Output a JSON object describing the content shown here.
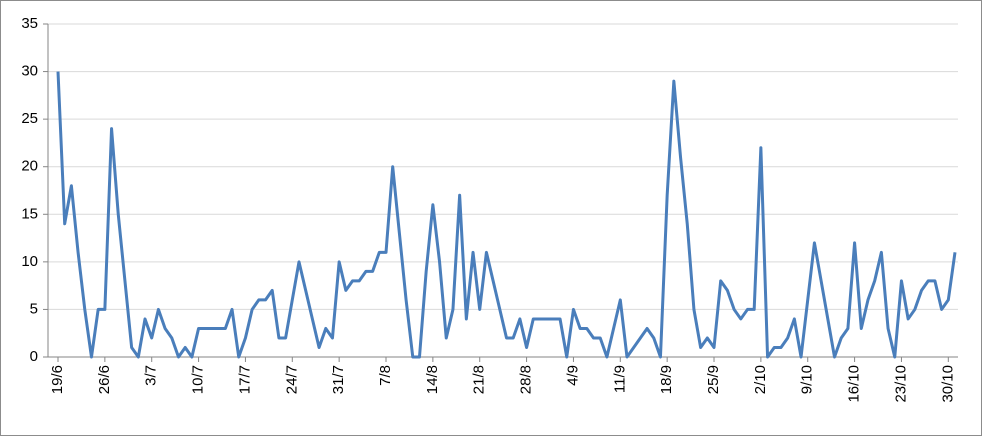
{
  "chart_data": {
    "type": "line",
    "categories": [
      "19/6",
      null,
      null,
      null,
      null,
      null,
      null,
      "26/6",
      null,
      null,
      null,
      null,
      null,
      null,
      "3/7",
      null,
      null,
      null,
      null,
      null,
      null,
      "10/7",
      null,
      null,
      null,
      null,
      null,
      null,
      "17/7",
      null,
      null,
      null,
      null,
      null,
      null,
      "24/7",
      null,
      null,
      null,
      null,
      null,
      null,
      "31/7",
      null,
      null,
      null,
      null,
      null,
      null,
      "7/8",
      null,
      null,
      null,
      null,
      null,
      null,
      "14/8",
      null,
      null,
      null,
      null,
      null,
      null,
      "21/8",
      null,
      null,
      null,
      null,
      null,
      null,
      "28/8",
      null,
      null,
      null,
      null,
      null,
      null,
      "4/9",
      null,
      null,
      null,
      null,
      null,
      null,
      "11/9",
      null,
      null,
      null,
      null,
      null,
      null,
      "18/9",
      null,
      null,
      null,
      null,
      null,
      null,
      "25/9",
      null,
      null,
      null,
      null,
      null,
      null,
      "2/10",
      null,
      null,
      null,
      null,
      null,
      null,
      "9/10",
      null,
      null,
      null,
      null,
      null,
      null,
      "16/10",
      null,
      null,
      null,
      null,
      null,
      null,
      "23/10",
      null,
      null,
      null,
      null,
      null,
      null,
      "30/10",
      null
    ],
    "values": [
      30,
      14,
      18,
      11,
      5,
      0,
      5,
      5,
      24,
      15,
      8,
      1,
      0,
      4,
      2,
      5,
      3,
      2,
      0,
      1,
      0,
      3,
      3,
      3,
      3,
      3,
      5,
      0,
      2,
      5,
      6,
      6,
      7,
      2,
      2,
      6,
      10,
      7,
      4,
      1,
      3,
      2,
      10,
      7,
      8,
      8,
      9,
      9,
      11,
      11,
      20,
      13,
      6,
      0,
      0,
      9,
      16,
      10,
      2,
      5,
      17,
      4,
      11,
      5,
      11,
      8,
      5,
      2,
      2,
      4,
      1,
      4,
      4,
      4,
      4,
      4,
      0,
      5,
      3,
      3,
      2,
      2,
      0,
      3,
      6,
      0,
      1,
      2,
      3,
      2,
      0,
      17,
      29,
      21,
      14,
      5,
      1,
      2,
      1,
      8,
      7,
      5,
      4,
      5,
      5,
      22,
      0,
      1,
      1,
      2,
      4,
      0,
      6,
      12,
      8,
      4,
      0,
      2,
      3,
      12,
      3,
      6,
      8,
      11,
      3,
      0,
      8,
      4,
      5,
      7,
      8,
      8,
      5,
      6,
      11
    ],
    "color": "#4a7ebb",
    "ylim": [
      0,
      35
    ],
    "yticks": [
      0,
      5,
      10,
      15,
      20,
      25,
      30,
      35
    ],
    "grid": true
  }
}
